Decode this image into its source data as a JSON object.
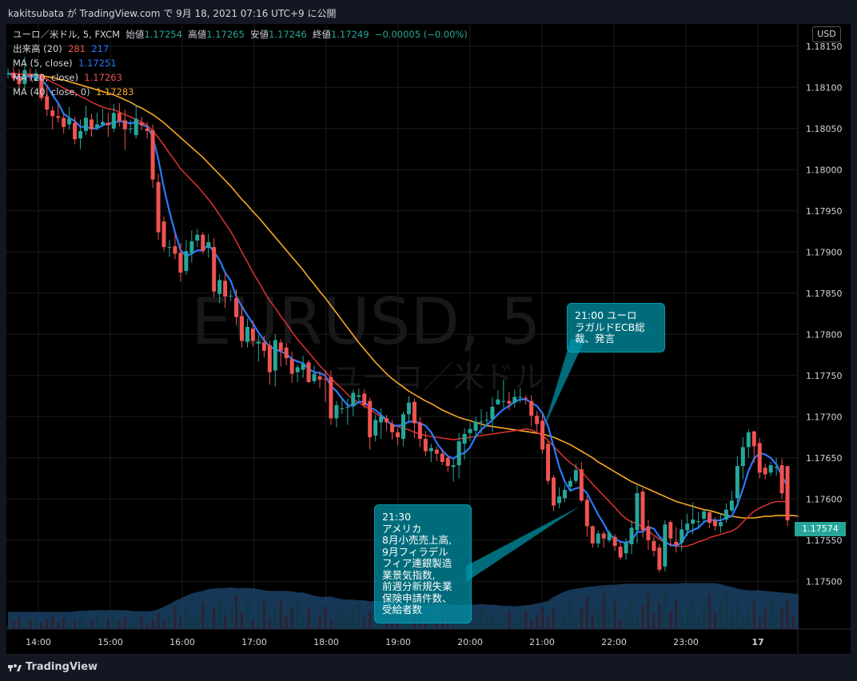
{
  "header": {
    "publish_line": "kakitsubata が TradingView.com で 9月 18, 2021 07:16 UTC+9 に公開"
  },
  "legend": {
    "symbol": "ユーロ／米ドル, 5, FXCM",
    "open_label": "始値",
    "open": "1.17254",
    "high_label": "高値",
    "high": "1.17265",
    "low_label": "安値",
    "low": "1.17246",
    "close_label": "終値",
    "close": "1.17249",
    "change": "−0.00005 (−0.00%)",
    "volume_label": "出来高 (20)",
    "volume_red": "281",
    "volume_blue": "217",
    "ma5_label": "MA (5, close)",
    "ma5_value": "1.17251",
    "ma20_label": "MA (20, close)",
    "ma20_value": "1.17263",
    "ma40_label": "MA (40, close, 0)",
    "ma40_value": "1.17283"
  },
  "watermark": {
    "symbol": "EURUSD, 5",
    "name": "ユーロ／米ドル"
  },
  "currency_button": "USD",
  "last_price_tag": "1.17574",
  "annotations": [
    {
      "text": "21:00 ユーロ\nラガルドECB総\n裁、発言"
    },
    {
      "text": "21:30\nアメリカ\n8月小売売上高,\n9月フィラデル\nフィア連銀製造\n業景気指数,\n前週分新規失業\n保険申請件数、\n受給者数"
    }
  ],
  "footer": {
    "brand": "TradingView"
  },
  "colors": {
    "background": "#000000",
    "up": "#26a69a",
    "down": "#ef5350",
    "ma5": "#2979ff",
    "ma20": "#d32f2f",
    "ma40": "#f9a825",
    "volume_area": "#1e4a73"
  },
  "chart_data": {
    "type": "candlestick",
    "x_ticks": [
      "14:00",
      "15:00",
      "16:00",
      "17:00",
      "18:00",
      "19:00",
      "20:00",
      "21:00",
      "22:00",
      "23:00",
      "17"
    ],
    "y_ticks": [
      "1.18150",
      "1.18100",
      "1.18050",
      "1.18000",
      "1.17950",
      "1.17900",
      "1.17850",
      "1.17800",
      "1.17750",
      "1.17700",
      "1.17650",
      "1.17600",
      "1.17550",
      "1.17500"
    ],
    "ylim": [
      1.17442,
      1.18177
    ],
    "candles_open": [
      1.18116,
      1.18118,
      1.18114,
      1.18104,
      1.18116,
      1.18109,
      1.18116,
      1.18089,
      1.18072,
      1.18065,
      1.18063,
      1.18055,
      1.18057,
      1.18038,
      1.18047,
      1.18061,
      1.18051,
      1.18055,
      1.18057,
      1.1805,
      1.18069,
      1.1806,
      1.1805,
      1.18042,
      1.18057,
      1.1805,
      1.18048,
      1.17985,
      1.17937,
      1.17906,
      1.17907,
      1.17899,
      1.17877,
      1.17899,
      1.17914,
      1.17921,
      1.17905,
      1.17906,
      1.17849,
      1.17865,
      1.17847,
      1.17844,
      1.17822,
      1.17791,
      1.17807,
      1.17789,
      1.1779,
      1.17787,
      1.17756,
      1.1779,
      1.17784,
      1.1777,
      1.17754,
      1.17757,
      1.17766,
      1.17743,
      1.17749,
      1.17746,
      1.17748,
      1.17698,
      1.1771,
      1.17712,
      1.17713,
      1.17724,
      1.17728,
      1.17719,
      1.17677,
      1.17693,
      1.17698,
      1.17691,
      1.17681,
      1.17673,
      1.17703,
      1.17718,
      1.17693,
      1.17673,
      1.17658,
      1.1766,
      1.17655,
      1.1765,
      1.17639,
      1.17641,
      1.17667,
      1.1768,
      1.17683,
      1.17693,
      1.17695,
      1.17697,
      1.17715,
      1.17719,
      1.17719,
      1.17717,
      1.17724,
      1.17723,
      1.17719,
      1.17701,
      1.17695,
      1.17667,
      1.17626,
      1.17595,
      1.17601,
      1.17615,
      1.17622,
      1.17636,
      1.17599,
      1.17567,
      1.17546,
      1.17558,
      1.1755,
      1.17554,
      1.17542,
      1.17534,
      1.17545,
      1.17562,
      1.17609,
      1.17567,
      1.17549,
      1.17541,
      1.17518,
      1.17572,
      1.17548,
      1.17547,
      1.17562,
      1.1757,
      1.17572,
      1.17576,
      1.17584,
      1.17574,
      1.17567,
      1.17575,
      1.17586,
      1.17601,
      1.1764,
      1.17663,
      1.17682,
      1.17668,
      1.17638,
      1.17632,
      1.17639,
      1.17641,
      1.1764,
      1.17606
    ],
    "candles_close": [
      1.18117,
      1.18111,
      1.18104,
      1.18121,
      1.18114,
      1.18117,
      1.18087,
      1.18073,
      1.18065,
      1.18063,
      1.18052,
      1.18062,
      1.18037,
      1.18047,
      1.18063,
      1.18049,
      1.18055,
      1.18058,
      1.18054,
      1.18069,
      1.18059,
      1.18049,
      1.1805,
      1.18062,
      1.18054,
      1.18047,
      1.17988,
      1.17924,
      1.17906,
      1.17906,
      1.17898,
      1.17875,
      1.17901,
      1.17913,
      1.17921,
      1.17901,
      1.17912,
      1.17852,
      1.17866,
      1.17846,
      1.17847,
      1.17821,
      1.17792,
      1.17809,
      1.17792,
      1.17791,
      1.1778,
      1.17754,
      1.17793,
      1.1778,
      1.17771,
      1.17752,
      1.1776,
      1.17764,
      1.17742,
      1.17752,
      1.17745,
      1.17745,
      1.17698,
      1.17714,
      1.1771,
      1.17712,
      1.17729,
      1.17726,
      1.17714,
      1.17675,
      1.17696,
      1.177,
      1.17693,
      1.17681,
      1.17675,
      1.17703,
      1.17717,
      1.17692,
      1.17673,
      1.17658,
      1.17662,
      1.17655,
      1.17645,
      1.1764,
      1.17641,
      1.1767,
      1.17679,
      1.17685,
      1.17694,
      1.17694,
      1.17696,
      1.17712,
      1.17721,
      1.17719,
      1.17716,
      1.17724,
      1.17724,
      1.17722,
      1.17701,
      1.17691,
      1.1766,
      1.17622,
      1.17592,
      1.17603,
      1.17611,
      1.17622,
      1.17635,
      1.17598,
      1.17567,
      1.17546,
      1.17558,
      1.17552,
      1.17559,
      1.17543,
      1.17529,
      1.17547,
      1.17565,
      1.17607,
      1.17562,
      1.1755,
      1.17537,
      1.17514,
      1.17569,
      1.17552,
      1.17544,
      1.17563,
      1.1757,
      1.17575,
      1.17573,
      1.17585,
      1.17571,
      1.17567,
      1.17572,
      1.17587,
      1.17598,
      1.1764,
      1.17663,
      1.17681,
      1.17664,
      1.17632,
      1.1763,
      1.17641,
      1.17639,
      1.17607,
      1.17574
    ],
    "candles_high": [
      1.18123,
      1.18125,
      1.18122,
      1.18137,
      1.18123,
      1.18122,
      1.18117,
      1.18102,
      1.18077,
      1.18079,
      1.18068,
      1.18076,
      1.18064,
      1.18061,
      1.18078,
      1.18068,
      1.18069,
      1.18074,
      1.18069,
      1.1808,
      1.18081,
      1.18073,
      1.18061,
      1.18079,
      1.18064,
      1.18058,
      1.18055,
      1.17995,
      1.17943,
      1.17915,
      1.17922,
      1.17911,
      1.17915,
      1.17926,
      1.17928,
      1.17924,
      1.17922,
      1.17917,
      1.17873,
      1.17875,
      1.17854,
      1.17855,
      1.17835,
      1.17819,
      1.17817,
      1.17799,
      1.17798,
      1.17792,
      1.178,
      1.17794,
      1.17789,
      1.17779,
      1.17763,
      1.17774,
      1.17769,
      1.17762,
      1.17755,
      1.17756,
      1.17756,
      1.17719,
      1.17723,
      1.17722,
      1.17733,
      1.17734,
      1.17733,
      1.17723,
      1.17702,
      1.1771,
      1.17702,
      1.17696,
      1.17686,
      1.17706,
      1.17725,
      1.17722,
      1.17699,
      1.17683,
      1.17667,
      1.17664,
      1.17661,
      1.17653,
      1.17648,
      1.1768,
      1.17686,
      1.17693,
      1.177,
      1.17709,
      1.17706,
      1.17724,
      1.17732,
      1.17745,
      1.1773,
      1.17733,
      1.17735,
      1.17726,
      1.17726,
      1.17707,
      1.17704,
      1.1767,
      1.17629,
      1.17614,
      1.17617,
      1.17626,
      1.17643,
      1.17645,
      1.17604,
      1.17568,
      1.17562,
      1.17561,
      1.17562,
      1.17557,
      1.17548,
      1.17552,
      1.17574,
      1.17617,
      1.17613,
      1.17575,
      1.17554,
      1.17545,
      1.17574,
      1.17574,
      1.17566,
      1.17575,
      1.17582,
      1.17596,
      1.17584,
      1.17587,
      1.17584,
      1.17578,
      1.17582,
      1.17595,
      1.1761,
      1.17652,
      1.17675,
      1.17685,
      1.17683,
      1.17674,
      1.17643,
      1.17645,
      1.1765,
      1.17649,
      1.1761
    ],
    "candles_low": [
      1.18111,
      1.18108,
      1.18093,
      1.18097,
      1.18107,
      1.18107,
      1.18084,
      1.18065,
      1.18049,
      1.18057,
      1.18044,
      1.18049,
      1.18031,
      1.18025,
      1.18042,
      1.1804,
      1.18048,
      1.18052,
      1.1804,
      1.18046,
      1.18052,
      1.18024,
      1.18044,
      1.18038,
      1.18048,
      1.18038,
      1.17978,
      1.17915,
      1.17901,
      1.17894,
      1.17891,
      1.17864,
      1.17872,
      1.17887,
      1.17906,
      1.17898,
      1.17893,
      1.17845,
      1.17838,
      1.17832,
      1.1784,
      1.17811,
      1.17784,
      1.17784,
      1.17785,
      1.17767,
      1.17772,
      1.17739,
      1.17737,
      1.17761,
      1.17762,
      1.17741,
      1.17742,
      1.17747,
      1.17741,
      1.1774,
      1.17735,
      1.17718,
      1.1769,
      1.17687,
      1.17703,
      1.1769,
      1.17701,
      1.17718,
      1.1771,
      1.1766,
      1.1767,
      1.17673,
      1.17683,
      1.17672,
      1.17665,
      1.17664,
      1.17694,
      1.17674,
      1.17663,
      1.17652,
      1.17645,
      1.17646,
      1.17641,
      1.17633,
      1.17621,
      1.17625,
      1.17648,
      1.1767,
      1.17674,
      1.17679,
      1.17689,
      1.17681,
      1.17714,
      1.17711,
      1.17708,
      1.17711,
      1.17717,
      1.17715,
      1.17688,
      1.17682,
      1.17655,
      1.17618,
      1.17585,
      1.17589,
      1.17596,
      1.17609,
      1.17619,
      1.17596,
      1.17554,
      1.17541,
      1.17541,
      1.17541,
      1.17547,
      1.17537,
      1.17526,
      1.17526,
      1.17533,
      1.17546,
      1.17553,
      1.17538,
      1.1753,
      1.17511,
      1.17512,
      1.17542,
      1.17535,
      1.17537,
      1.17555,
      1.17557,
      1.17564,
      1.17573,
      1.17565,
      1.17562,
      1.17559,
      1.17571,
      1.17584,
      1.1759,
      1.17624,
      1.1765,
      1.17644,
      1.17625,
      1.17624,
      1.17628,
      1.17628,
      1.176,
      1.17567
    ],
    "ma5": [
      1.18117,
      1.18114,
      1.18111,
      1.18113,
      1.18113,
      1.18113,
      1.18109,
      1.18102,
      1.18091,
      1.18081,
      1.18068,
      1.18063,
      1.18059,
      1.18052,
      1.18052,
      1.1805,
      1.1805,
      1.18054,
      1.18056,
      1.18057,
      1.18059,
      1.18058,
      1.18056,
      1.18058,
      1.18055,
      1.18052,
      1.1804,
      1.18013,
      1.17978,
      1.17949,
      1.17924,
      1.17902,
      1.17895,
      1.17898,
      1.17902,
      1.17902,
      1.17909,
      1.179,
      1.1789,
      1.17875,
      1.17865,
      1.17846,
      1.17834,
      1.17823,
      1.17813,
      1.17802,
      1.17793,
      1.17785,
      1.17782,
      1.17779,
      1.17776,
      1.1777,
      1.17767,
      1.17765,
      1.17758,
      1.17754,
      1.17753,
      1.1775,
      1.17737,
      1.17731,
      1.17722,
      1.17714,
      1.17713,
      1.17718,
      1.17718,
      1.17711,
      1.17708,
      1.17702,
      1.17696,
      1.17689,
      1.17689,
      1.1769,
      1.17694,
      1.17694,
      1.17692,
      1.17689,
      1.17681,
      1.17668,
      1.17659,
      1.17652,
      1.17649,
      1.17654,
      1.17656,
      1.17663,
      1.17676,
      1.17684,
      1.1769,
      1.17696,
      1.17703,
      1.17709,
      1.17713,
      1.17718,
      1.17721,
      1.17721,
      1.17717,
      1.17713,
      1.17704,
      1.17688,
      1.17664,
      1.17639,
      1.17621,
      1.1761,
      1.17613,
      1.17614,
      1.17607,
      1.17594,
      1.17581,
      1.1757,
      1.17557,
      1.17552,
      1.17548,
      1.17547,
      1.17549,
      1.1756,
      1.1756,
      1.17566,
      1.17564,
      1.17554,
      1.17548,
      1.17544,
      1.17543,
      1.17547,
      1.17559,
      1.17562,
      1.17565,
      1.17572,
      1.17575,
      1.17574,
      1.17574,
      1.17577,
      1.17579,
      1.17593,
      1.17612,
      1.17634,
      1.17649,
      1.17656,
      1.17654,
      1.1765,
      1.17642,
      1.17628,
      1.17615
    ],
    "ma20": [
      1.18117,
      1.18117,
      1.18116,
      1.18116,
      1.18116,
      1.18115,
      1.18113,
      1.1811,
      1.18106,
      1.18103,
      1.18099,
      1.18096,
      1.18093,
      1.18089,
      1.18086,
      1.18082,
      1.18079,
      1.18076,
      1.18074,
      1.18073,
      1.1807,
      1.18067,
      1.18064,
      1.18061,
      1.18058,
      1.18054,
      1.18047,
      1.18039,
      1.1803,
      1.1802,
      1.18011,
      1.18001,
      1.17994,
      1.17987,
      1.1798,
      1.17972,
      1.17964,
      1.17955,
      1.17945,
      1.17935,
      1.17925,
      1.17913,
      1.179,
      1.17888,
      1.17875,
      1.17864,
      1.17852,
      1.17841,
      1.17832,
      1.17822,
      1.17813,
      1.17803,
      1.17794,
      1.17786,
      1.17778,
      1.1777,
      1.17762,
      1.17755,
      1.17747,
      1.1774,
      1.17734,
      1.17727,
      1.17721,
      1.17717,
      1.17713,
      1.17709,
      1.17704,
      1.177,
      1.17695,
      1.17691,
      1.17688,
      1.17686,
      1.17684,
      1.17681,
      1.17679,
      1.17677,
      1.17676,
      1.17675,
      1.17674,
      1.17673,
      1.17672,
      1.17673,
      1.17674,
      1.17675,
      1.17676,
      1.17677,
      1.17678,
      1.17679,
      1.1768,
      1.17681,
      1.17682,
      1.17683,
      1.17684,
      1.17685,
      1.17684,
      1.17681,
      1.17677,
      1.17671,
      1.17664,
      1.17657,
      1.1765,
      1.17644,
      1.17639,
      1.17633,
      1.17626,
      1.17618,
      1.17611,
      1.17604,
      1.17597,
      1.1759,
      1.17582,
      1.17576,
      1.17572,
      1.1757,
      1.17566,
      1.17561,
      1.17556,
      1.17551,
      1.17547,
      1.17545,
      1.17543,
      1.17542,
      1.17543,
      1.17545,
      1.17548,
      1.1755,
      1.17553,
      1.17555,
      1.17557,
      1.17559,
      1.17561,
      1.17565,
      1.17572,
      1.17579,
      1.17585,
      1.17589,
      1.17592,
      1.17595,
      1.17597,
      1.17597,
      1.17597
    ],
    "ma40": [
      1.18117,
      1.18117,
      1.18116,
      1.18116,
      1.18115,
      1.18115,
      1.18114,
      1.18113,
      1.18112,
      1.1811,
      1.18109,
      1.18107,
      1.18105,
      1.18103,
      1.18101,
      1.18099,
      1.18097,
      1.18095,
      1.18093,
      1.18091,
      1.18088,
      1.18085,
      1.18082,
      1.18078,
      1.18075,
      1.18071,
      1.18067,
      1.18062,
      1.18057,
      1.18051,
      1.18045,
      1.18039,
      1.18033,
      1.18027,
      1.18021,
      1.18015,
      1.18008,
      1.18001,
      1.17994,
      1.17987,
      1.1798,
      1.17972,
      1.17964,
      1.17957,
      1.17949,
      1.17942,
      1.17934,
      1.17926,
      1.17918,
      1.1791,
      1.17902,
      1.17894,
      1.17886,
      1.17878,
      1.17869,
      1.17861,
      1.17852,
      1.17844,
      1.17835,
      1.17826,
      1.17817,
      1.17808,
      1.17799,
      1.1779,
      1.17782,
      1.17774,
      1.17766,
      1.17759,
      1.17752,
      1.17746,
      1.17741,
      1.17736,
      1.17731,
      1.17727,
      1.17723,
      1.17719,
      1.17716,
      1.17712,
      1.17708,
      1.17705,
      1.17702,
      1.17699,
      1.17697,
      1.17695,
      1.17693,
      1.17691,
      1.17689,
      1.17688,
      1.17687,
      1.17686,
      1.17685,
      1.17684,
      1.17683,
      1.17682,
      1.17681,
      1.1768,
      1.17679,
      1.17677,
      1.17675,
      1.17672,
      1.17669,
      1.17666,
      1.17662,
      1.17658,
      1.17654,
      1.1765,
      1.17645,
      1.17641,
      1.17637,
      1.17633,
      1.17629,
      1.17625,
      1.17621,
      1.17618,
      1.17615,
      1.17612,
      1.17609,
      1.17606,
      1.17603,
      1.176,
      1.17597,
      1.17595,
      1.17593,
      1.17591,
      1.17589,
      1.17587,
      1.17586,
      1.17584,
      1.17582,
      1.1758,
      1.17579,
      1.17578,
      1.17577,
      1.17577,
      1.17577,
      1.17578,
      1.17579,
      1.17579,
      1.1758,
      1.1758,
      1.1758,
      1.1758,
      1.17579
    ],
    "volume_profile": [
      0.31,
      0.31,
      0.31,
      0.31,
      0.31,
      0.31,
      0.31,
      0.31,
      0.31,
      0.31,
      0.31,
      0.31,
      0.32,
      0.33,
      0.33,
      0.34,
      0.34,
      0.34,
      0.34,
      0.34,
      0.34,
      0.34,
      0.33,
      0.32,
      0.32,
      0.32,
      0.33,
      0.36,
      0.4,
      0.45,
      0.51,
      0.55,
      0.6,
      0.64,
      0.67,
      0.69,
      0.72,
      0.73,
      0.74,
      0.74,
      0.75,
      0.74,
      0.74,
      0.74,
      0.74,
      0.72,
      0.7,
      0.69,
      0.69,
      0.69,
      0.69,
      0.68,
      0.66,
      0.66,
      0.63,
      0.6,
      0.58,
      0.58,
      0.59,
      0.56,
      0.54,
      0.53,
      0.53,
      0.52,
      0.52,
      0.5,
      0.51,
      0.5,
      0.49,
      0.49,
      0.48,
      0.47,
      0.46,
      0.46,
      0.44,
      0.44,
      0.45,
      0.45,
      0.45,
      0.45,
      0.44,
      0.43,
      0.44,
      0.44,
      0.44,
      0.45,
      0.44,
      0.44,
      0.43,
      0.42,
      0.42,
      0.41,
      0.42,
      0.43,
      0.44,
      0.46,
      0.48,
      0.51,
      0.58,
      0.63,
      0.68,
      0.71,
      0.73,
      0.74,
      0.76,
      0.77,
      0.78,
      0.79,
      0.8,
      0.8,
      0.81,
      0.82,
      0.82,
      0.82,
      0.82,
      0.82,
      0.82,
      0.82,
      0.82,
      0.82,
      0.82,
      0.83,
      0.83,
      0.83,
      0.83,
      0.83,
      0.83,
      0.83,
      0.81,
      0.78,
      0.76,
      0.73,
      0.71,
      0.7,
      0.7,
      0.7,
      0.69,
      0.68,
      0.67,
      0.66,
      0.65,
      0.64,
      0.63
    ]
  }
}
